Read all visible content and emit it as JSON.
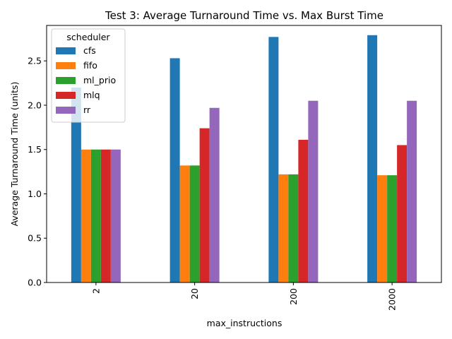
{
  "chart_data": {
    "type": "bar",
    "title": "Test 3: Average Turnaround Time vs. Max Burst Time",
    "xlabel": "max_instructions",
    "ylabel": "Average Turnaround Time (units)",
    "categories": [
      "2",
      "20",
      "200",
      "2000"
    ],
    "ylim": [
      0,
      2.9
    ],
    "yticks": [
      "0.0",
      "0.5",
      "1.0",
      "1.5",
      "2.0",
      "2.5"
    ],
    "grid": false,
    "legend": {
      "title": "scheduler",
      "placement": "top-left"
    },
    "series": [
      {
        "name": "cfs",
        "color": "#1f77b4",
        "values": [
          2.2,
          2.53,
          2.77,
          2.79
        ]
      },
      {
        "name": "fifo",
        "color": "#ff7f0e",
        "values": [
          1.5,
          1.32,
          1.22,
          1.21
        ]
      },
      {
        "name": "ml_prio",
        "color": "#2ca02c",
        "values": [
          1.5,
          1.32,
          1.22,
          1.21
        ]
      },
      {
        "name": "mlq",
        "color": "#d62728",
        "values": [
          1.5,
          1.74,
          1.61,
          1.55
        ]
      },
      {
        "name": "rr",
        "color": "#9467bd",
        "values": [
          1.5,
          1.97,
          2.05,
          2.05
        ]
      }
    ]
  }
}
